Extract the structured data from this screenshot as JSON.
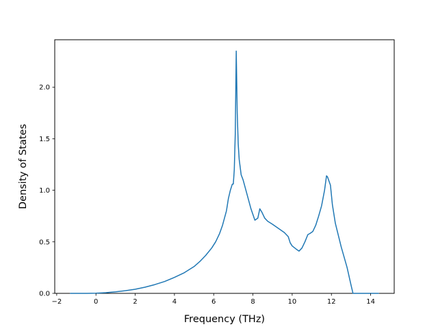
{
  "chart_data": {
    "type": "line",
    "title": "",
    "xlabel": "Frequency (THz)",
    "ylabel": "Density of States",
    "xlim": [
      -2.1,
      15.2
    ],
    "ylim": [
      0.0,
      2.46
    ],
    "xticks": [
      -2,
      0,
      2,
      4,
      6,
      8,
      10,
      12,
      14
    ],
    "xtick_labels": [
      "−2",
      "0",
      "2",
      "4",
      "6",
      "8",
      "10",
      "12",
      "14"
    ],
    "yticks": [
      0.0,
      0.5,
      1.0,
      1.5,
      2.0
    ],
    "ytick_labels": [
      "0.0",
      "0.5",
      "1.0",
      "1.5",
      "2.0"
    ],
    "grid": false,
    "legend": "none",
    "series": [
      {
        "color": "#1f77b4",
        "x": [
          -1.3,
          -0.5,
          0.0,
          0.5,
          1.0,
          1.5,
          2.0,
          2.5,
          3.0,
          3.5,
          4.0,
          4.5,
          5.0,
          5.3,
          5.6,
          5.9,
          6.1,
          6.3,
          6.45,
          6.55,
          6.65,
          6.75,
          6.85,
          6.95,
          7.0,
          7.05,
          7.1,
          7.15,
          7.2,
          7.25,
          7.3,
          7.4,
          7.5,
          7.7,
          7.9,
          8.1,
          8.25,
          8.35,
          8.45,
          8.6,
          8.75,
          9.0,
          9.3,
          9.6,
          9.8,
          9.9,
          10.0,
          10.2,
          10.35,
          10.5,
          10.65,
          10.8,
          10.9,
          11.05,
          11.2,
          11.35,
          11.5,
          11.65,
          11.75,
          11.8,
          11.95,
          12.05,
          12.2,
          12.5,
          12.8,
          13.0,
          13.1,
          13.15,
          13.6,
          14.4
        ],
        "y": [
          0.0,
          0.0,
          0.002,
          0.007,
          0.015,
          0.026,
          0.04,
          0.06,
          0.085,
          0.115,
          0.155,
          0.2,
          0.26,
          0.31,
          0.37,
          0.44,
          0.5,
          0.58,
          0.66,
          0.73,
          0.8,
          0.92,
          1.0,
          1.06,
          1.06,
          1.2,
          1.55,
          2.35,
          1.75,
          1.45,
          1.3,
          1.15,
          1.1,
          0.96,
          0.82,
          0.71,
          0.73,
          0.82,
          0.79,
          0.73,
          0.7,
          0.67,
          0.63,
          0.59,
          0.55,
          0.49,
          0.46,
          0.43,
          0.41,
          0.44,
          0.5,
          0.57,
          0.58,
          0.6,
          0.66,
          0.75,
          0.85,
          1.0,
          1.14,
          1.13,
          1.05,
          0.86,
          0.68,
          0.45,
          0.25,
          0.08,
          0.0,
          0.0,
          0.0,
          0.0
        ]
      }
    ]
  }
}
